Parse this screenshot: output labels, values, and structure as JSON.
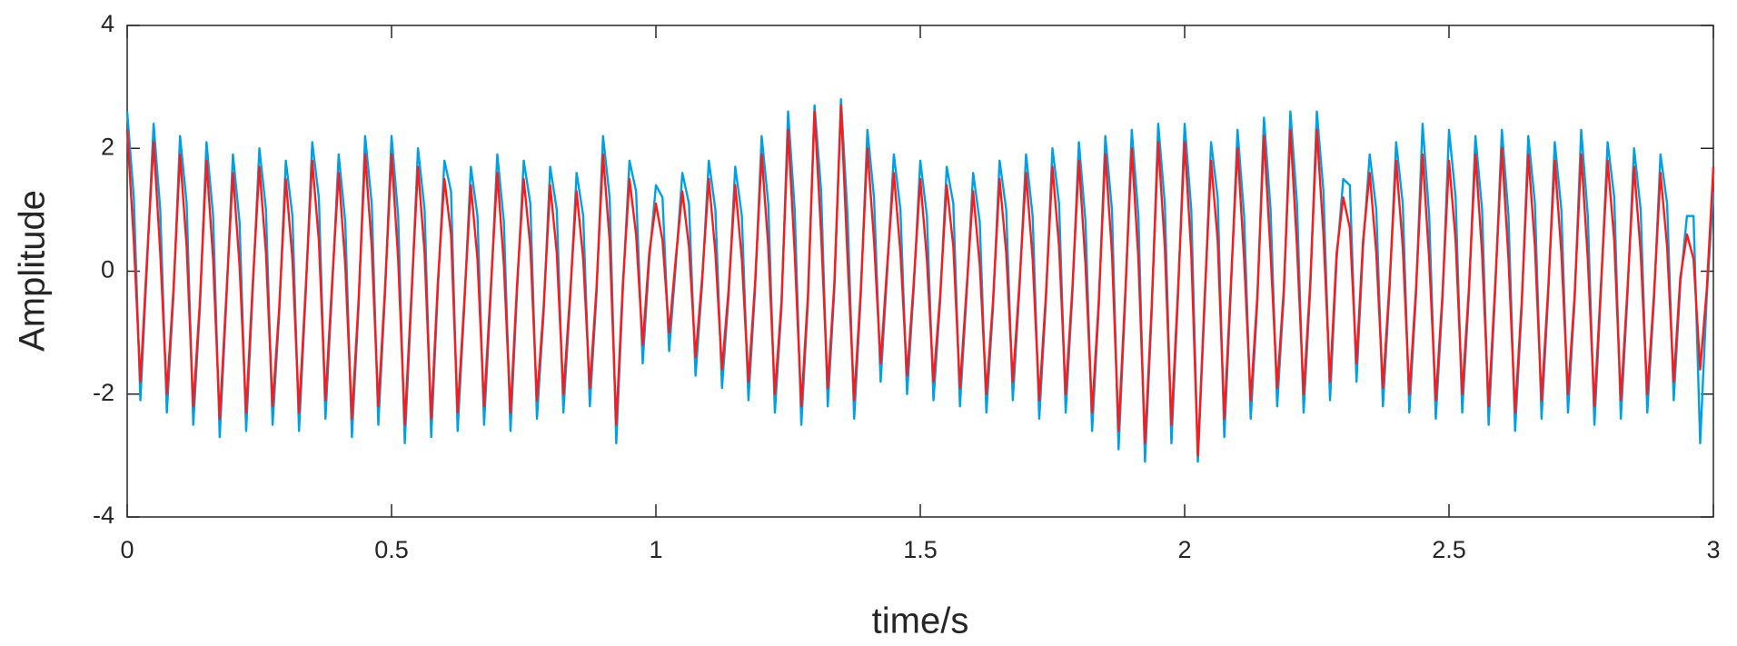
{
  "chart_data": {
    "type": "line",
    "x_label": "time/s",
    "y_label": "Amplitude",
    "xlim": [
      0,
      3
    ],
    "ylim": [
      -4,
      4
    ],
    "xticks": [
      0,
      0.5,
      1,
      1.5,
      2,
      2.5,
      3
    ],
    "yticks": [
      -4,
      -2,
      0,
      2,
      4
    ],
    "grid": false,
    "x": [
      0,
      0.0125,
      0.025,
      0.0375,
      0.05,
      0.0625,
      0.075,
      0.0875,
      0.1,
      0.1125,
      0.125,
      0.1375,
      0.15,
      0.1625,
      0.175,
      0.1875,
      0.2,
      0.2125,
      0.225,
      0.2375,
      0.25,
      0.2625,
      0.275,
      0.2875,
      0.3,
      0.3125,
      0.325,
      0.3375,
      0.35,
      0.3625,
      0.375,
      0.3875,
      0.4,
      0.4125,
      0.425,
      0.4375,
      0.45,
      0.4625,
      0.475,
      0.4875,
      0.5,
      0.5125,
      0.525,
      0.5375,
      0.55,
      0.5625,
      0.575,
      0.5875,
      0.6,
      0.6125,
      0.625,
      0.6375,
      0.65,
      0.6625,
      0.675,
      0.6875,
      0.7,
      0.7125,
      0.725,
      0.7375,
      0.75,
      0.7625,
      0.775,
      0.7875,
      0.8,
      0.8125,
      0.825,
      0.8375,
      0.85,
      0.8625,
      0.875,
      0.8875,
      0.9,
      0.9125,
      0.925,
      0.9375,
      0.95,
      0.9625,
      0.975,
      0.9875,
      1,
      1.0125,
      1.025,
      1.0375,
      1.05,
      1.0625,
      1.075,
      1.0875,
      1.1,
      1.1125,
      1.125,
      1.1375,
      1.15,
      1.1625,
      1.175,
      1.1875,
      1.2,
      1.2125,
      1.225,
      1.2375,
      1.25,
      1.2625,
      1.275,
      1.2875,
      1.3,
      1.3125,
      1.325,
      1.3375,
      1.35,
      1.3625,
      1.375,
      1.3875,
      1.4,
      1.4125,
      1.425,
      1.4375,
      1.45,
      1.4625,
      1.475,
      1.4875,
      1.5,
      1.5125,
      1.525,
      1.5375,
      1.55,
      1.5625,
      1.575,
      1.5875,
      1.6,
      1.6125,
      1.625,
      1.6375,
      1.65,
      1.6625,
      1.675,
      1.6875,
      1.7,
      1.7125,
      1.725,
      1.7375,
      1.75,
      1.7625,
      1.775,
      1.7875,
      1.8,
      1.8125,
      1.825,
      1.8375,
      1.85,
      1.8625,
      1.875,
      1.8875,
      1.9,
      1.9125,
      1.925,
      1.9375,
      1.95,
      1.9625,
      1.975,
      1.9875,
      2,
      2.0125,
      2.025,
      2.0375,
      2.05,
      2.0625,
      2.075,
      2.0875,
      2.1,
      2.1125,
      2.125,
      2.1375,
      2.15,
      2.1625,
      2.175,
      2.1875,
      2.2,
      2.2125,
      2.225,
      2.2375,
      2.25,
      2.2625,
      2.275,
      2.2875,
      2.3,
      2.3125,
      2.325,
      2.3375,
      2.35,
      2.3625,
      2.375,
      2.3875,
      2.4,
      2.4125,
      2.425,
      2.4375,
      2.45,
      2.4625,
      2.475,
      2.4875,
      2.5,
      2.5125,
      2.525,
      2.5375,
      2.55,
      2.5625,
      2.575,
      2.5875,
      2.6,
      2.6125,
      2.625,
      2.6375,
      2.65,
      2.6625,
      2.675,
      2.6875,
      2.7,
      2.7125,
      2.725,
      2.7375,
      2.75,
      2.7625,
      2.775,
      2.7875,
      2.8,
      2.8125,
      2.825,
      2.8375,
      2.85,
      2.8625,
      2.875,
      2.8875,
      2.9,
      2.9125,
      2.925,
      2.9375,
      2.95,
      2.9625,
      2.975,
      2.9875,
      3
    ],
    "series": [
      {
        "color": "#00a0e4",
        "values": [
          2.6,
          1.2,
          -2.1,
          0.1,
          2.4,
          1.0,
          -2.3,
          -0.4,
          2.2,
          1.1,
          -2.5,
          -0.6,
          2.1,
          0.9,
          -2.7,
          -0.5,
          1.9,
          0.8,
          -2.6,
          -0.3,
          2.0,
          1.0,
          -2.5,
          -0.7,
          1.8,
          0.9,
          -2.6,
          -0.4,
          2.1,
          1.2,
          -2.4,
          -0.3,
          1.9,
          0.8,
          -2.7,
          -0.6,
          2.2,
          1.1,
          -2.5,
          -0.4,
          2.2,
          0.9,
          -2.8,
          -0.5,
          2.0,
          1.0,
          -2.7,
          -0.3,
          1.8,
          1.3,
          -2.6,
          -0.6,
          1.7,
          0.9,
          -2.5,
          -0.4,
          1.9,
          0.8,
          -2.6,
          -0.3,
          1.8,
          1.1,
          -2.4,
          -0.7,
          1.7,
          1.0,
          -2.3,
          -0.5,
          1.6,
          0.9,
          -2.2,
          -0.4,
          2.2,
          1.2,
          -2.8,
          -0.3,
          1.8,
          1.3,
          -1.5,
          0.2,
          1.4,
          1.2,
          -1.3,
          0.1,
          1.6,
          1.1,
          -1.7,
          -0.2,
          1.8,
          1.0,
          -1.9,
          -0.4,
          1.7,
          0.9,
          -2.1,
          -0.3,
          2.2,
          1.1,
          -2.3,
          -0.6,
          2.6,
          1.0,
          -2.5,
          -0.5,
          2.7,
          1.3,
          -2.2,
          -0.3,
          2.8,
          0.9,
          -2.4,
          -0.4,
          2.3,
          1.2,
          -1.8,
          0.0,
          1.9,
          1.0,
          -2.0,
          -0.3,
          1.8,
          0.9,
          -2.1,
          -0.5,
          1.7,
          1.1,
          -2.2,
          -0.4,
          1.6,
          0.8,
          -2.3,
          -0.6,
          1.8,
          1.0,
          -2.1,
          -0.3,
          1.9,
          0.9,
          -2.4,
          -0.5,
          2.0,
          1.1,
          -2.3,
          -0.4,
          2.1,
          0.8,
          -2.6,
          -0.6,
          2.2,
          1.0,
          -2.9,
          -0.5,
          2.3,
          0.9,
          -3.1,
          -0.7,
          2.4,
          1.1,
          -2.8,
          -0.4,
          2.4,
          1.0,
          -3.1,
          -0.6,
          2.1,
          1.2,
          -2.7,
          -0.3,
          2.3,
          0.9,
          -2.4,
          -0.5,
          2.5,
          1.0,
          -2.2,
          -0.4,
          2.6,
          1.1,
          -2.3,
          -0.3,
          2.6,
          1.3,
          -2.1,
          0.2,
          1.5,
          1.4,
          -1.8,
          0.4,
          1.9,
          1.0,
          -2.2,
          -0.3,
          2.1,
          1.1,
          -2.3,
          -0.4,
          2.4,
          0.9,
          -2.4,
          -0.5,
          2.3,
          1.2,
          -2.3,
          -0.4,
          2.2,
          1.0,
          -2.5,
          -0.3,
          2.3,
          0.9,
          -2.6,
          -0.6,
          2.2,
          1.1,
          -2.4,
          -0.4,
          2.1,
          1.0,
          -2.3,
          -0.5,
          2.3,
          0.9,
          -2.5,
          -0.3,
          2.1,
          1.2,
          -2.4,
          -0.4,
          2.0,
          1.0,
          -2.3,
          -0.5,
          1.9,
          1.1,
          -2.1,
          -0.2,
          0.9,
          0.9,
          -2.8,
          -0.4,
          1.3
        ]
      },
      {
        "color": "#ff1a1a",
        "values": [
          2.3,
          0.5,
          -1.8,
          0.2,
          2.1,
          0.3,
          -2.0,
          -0.3,
          1.9,
          0.4,
          -2.2,
          -0.5,
          1.8,
          0.2,
          -2.4,
          -0.4,
          1.6,
          0.1,
          -2.3,
          -0.2,
          1.7,
          0.3,
          -2.2,
          -0.6,
          1.5,
          0.2,
          -2.3,
          -0.3,
          1.8,
          0.5,
          -2.1,
          -0.2,
          1.6,
          0.1,
          -2.4,
          -0.5,
          1.9,
          0.4,
          -2.2,
          -0.3,
          1.9,
          0.2,
          -2.5,
          -0.4,
          1.7,
          0.3,
          -2.4,
          -0.2,
          1.5,
          0.6,
          -2.3,
          -0.5,
          1.4,
          0.2,
          -2.2,
          -0.3,
          1.6,
          0.1,
          -2.3,
          -0.2,
          1.5,
          0.4,
          -2.1,
          -0.6,
          1.4,
          0.3,
          -2.0,
          -0.4,
          1.3,
          0.2,
          -1.9,
          -0.3,
          1.9,
          0.5,
          -2.5,
          -0.2,
          1.5,
          0.6,
          -1.2,
          0.3,
          1.1,
          0.5,
          -1.0,
          0.2,
          1.3,
          0.4,
          -1.4,
          -0.1,
          1.5,
          0.3,
          -1.6,
          -0.3,
          1.4,
          0.2,
          -1.8,
          -0.2,
          1.9,
          0.4,
          -2.0,
          -0.5,
          2.3,
          0.3,
          -2.2,
          -0.4,
          2.6,
          0.6,
          -1.9,
          -0.2,
          2.7,
          0.2,
          -2.1,
          -0.3,
          2.0,
          0.5,
          -1.5,
          0.1,
          1.6,
          0.3,
          -1.7,
          -0.2,
          1.5,
          0.2,
          -1.8,
          -0.4,
          1.4,
          0.4,
          -1.9,
          -0.3,
          1.3,
          0.1,
          -2.0,
          -0.5,
          1.5,
          0.3,
          -1.8,
          -0.2,
          1.6,
          0.2,
          -2.1,
          -0.4,
          1.7,
          0.4,
          -2.0,
          -0.3,
          1.8,
          0.1,
          -2.3,
          -0.5,
          1.9,
          0.3,
          -2.6,
          -0.4,
          2.0,
          0.2,
          -2.8,
          -0.6,
          2.1,
          0.4,
          -2.5,
          -0.3,
          2.1,
          0.3,
          -3.0,
          -0.5,
          1.8,
          0.5,
          -2.4,
          -0.2,
          2.0,
          0.2,
          -2.1,
          -0.4,
          2.2,
          0.3,
          -1.9,
          -0.3,
          2.3,
          0.4,
          -2.0,
          -0.2,
          2.3,
          0.6,
          -1.8,
          0.3,
          1.2,
          0.7,
          -1.5,
          0.5,
          1.6,
          0.3,
          -1.9,
          -0.2,
          1.8,
          0.4,
          -2.0,
          -0.3,
          1.9,
          0.2,
          -2.1,
          -0.4,
          1.8,
          0.5,
          -2.0,
          -0.3,
          1.9,
          0.3,
          -2.2,
          -0.2,
          2.0,
          0.2,
          -2.3,
          -0.5,
          1.9,
          0.4,
          -2.1,
          -0.3,
          1.8,
          0.3,
          -2.0,
          -0.4,
          1.9,
          0.2,
          -2.2,
          -0.2,
          1.8,
          0.5,
          -2.1,
          -0.3,
          1.7,
          0.3,
          -2.0,
          -0.4,
          1.6,
          0.4,
          -1.8,
          -0.1,
          0.6,
          0.2,
          -1.6,
          -0.3,
          1.7
        ]
      }
    ]
  }
}
